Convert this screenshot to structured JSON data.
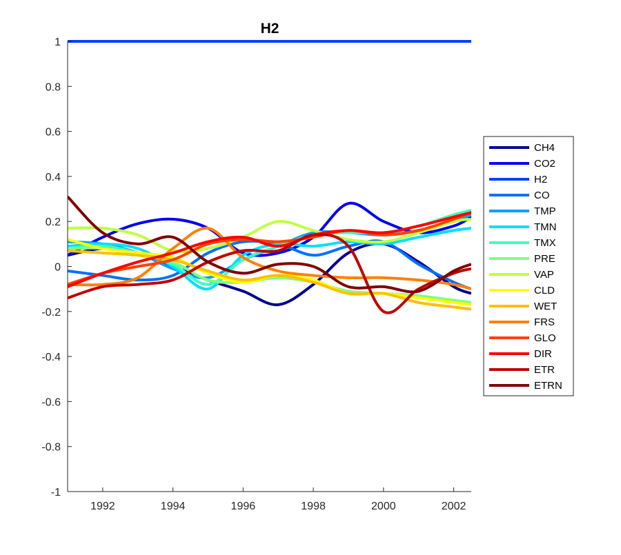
{
  "chart_data": {
    "type": "line",
    "title": "H2",
    "xlabel": "",
    "ylabel": "",
    "xlim": [
      1991,
      2002.5
    ],
    "ylim": [
      -1,
      1
    ],
    "xticks": [
      1992,
      1994,
      1996,
      1998,
      2000,
      2002
    ],
    "xtick_labels": [
      "1992",
      "1994",
      "1996",
      "1998",
      "2000",
      "2002"
    ],
    "yticks": [
      1,
      0.8,
      0.6,
      0.4,
      0.2,
      0,
      -0.2,
      -0.4,
      -0.6,
      -0.8,
      -1
    ],
    "ytick_labels": [
      "1",
      "0.8",
      "0.6",
      "0.4",
      "0.2",
      "0",
      "-0.2",
      "-0.4",
      "-0.6",
      "-0.8",
      "-1"
    ],
    "grid": false,
    "legend_position": "right-outside",
    "x": [
      1991,
      1992,
      1993,
      1994,
      1995,
      1996,
      1997,
      1998,
      1999,
      2000,
      2001,
      2002,
      2002.5
    ],
    "series": [
      {
        "name": "CH4",
        "color": "#00008F",
        "values": [
          0.05,
          0.08,
          0.06,
          0.0,
          -0.06,
          -0.11,
          -0.17,
          -0.08,
          0.06,
          0.1,
          0.02,
          -0.09,
          -0.12
        ]
      },
      {
        "name": "CO2",
        "color": "#0000EE",
        "values": [
          0.05,
          0.13,
          0.19,
          0.21,
          0.17,
          0.06,
          0.06,
          0.13,
          0.28,
          0.2,
          0.15,
          0.18,
          0.22
        ]
      },
      {
        "name": "H2",
        "color": "#0040FF",
        "values": [
          1,
          1,
          1,
          1,
          1,
          1,
          1,
          1,
          1,
          1,
          1,
          1,
          1
        ]
      },
      {
        "name": "CO",
        "color": "#0070FF",
        "values": [
          -0.02,
          -0.04,
          -0.06,
          -0.04,
          0.06,
          0.11,
          0.1,
          0.05,
          0.09,
          0.11,
          0.01,
          -0.07,
          -0.1
        ]
      },
      {
        "name": "TMP",
        "color": "#00A0FF",
        "values": [
          0.11,
          0.1,
          0.06,
          -0.01,
          -0.05,
          0.03,
          0.09,
          0.15,
          0.15,
          0.14,
          0.16,
          0.2,
          0.23
        ]
      },
      {
        "name": "TMN",
        "color": "#00DFFF",
        "values": [
          0.09,
          0.1,
          0.08,
          0.0,
          -0.1,
          0.05,
          0.1,
          0.09,
          0.11,
          0.1,
          0.13,
          0.16,
          0.17
        ]
      },
      {
        "name": "TMX",
        "color": "#40FFC0",
        "values": [
          0.08,
          0.09,
          0.06,
          0.01,
          -0.08,
          0.03,
          0.09,
          0.14,
          0.15,
          0.15,
          0.18,
          0.23,
          0.25
        ]
      },
      {
        "name": "PRE",
        "color": "#80FF80",
        "values": [
          0.08,
          0.08,
          0.05,
          0.02,
          -0.06,
          -0.07,
          -0.05,
          -0.07,
          -0.11,
          -0.12,
          -0.13,
          -0.15,
          -0.16
        ]
      },
      {
        "name": "VAP",
        "color": "#C0FF40",
        "values": [
          0.17,
          0.17,
          0.14,
          0.07,
          0.08,
          0.13,
          0.2,
          0.16,
          0.12,
          0.11,
          0.15,
          0.2,
          0.21
        ]
      },
      {
        "name": "CLD",
        "color": "#FFFF00",
        "values": [
          0.12,
          0.08,
          0.06,
          0.04,
          -0.03,
          -0.07,
          -0.04,
          -0.06,
          -0.12,
          -0.12,
          -0.14,
          -0.16,
          -0.17
        ]
      },
      {
        "name": "WET",
        "color": "#FFC000",
        "values": [
          0.07,
          0.06,
          0.05,
          0.03,
          -0.02,
          -0.06,
          -0.04,
          -0.07,
          -0.12,
          -0.12,
          -0.16,
          -0.18,
          -0.19
        ]
      },
      {
        "name": "FRS",
        "color": "#FF8000",
        "values": [
          -0.08,
          -0.08,
          -0.05,
          0.08,
          0.17,
          0.04,
          -0.02,
          -0.04,
          -0.05,
          -0.05,
          -0.06,
          -0.08,
          -0.1
        ]
      },
      {
        "name": "GLO",
        "color": "#FF4000",
        "values": [
          -0.08,
          -0.03,
          0.0,
          0.03,
          0.1,
          0.12,
          0.11,
          0.13,
          0.16,
          0.14,
          0.16,
          0.21,
          0.24
        ]
      },
      {
        "name": "DIR",
        "color": "#FF0000",
        "values": [
          -0.09,
          -0.03,
          0.02,
          0.06,
          0.11,
          0.13,
          0.09,
          0.14,
          0.16,
          0.15,
          0.18,
          0.22,
          0.24
        ]
      },
      {
        "name": "ETR",
        "color": "#BF0000",
        "values": [
          -0.14,
          -0.09,
          -0.08,
          -0.06,
          0.02,
          0.07,
          0.07,
          0.14,
          0.09,
          -0.2,
          -0.1,
          -0.03,
          -0.01
        ]
      },
      {
        "name": "ETRN",
        "color": "#800000",
        "values": [
          0.31,
          0.15,
          0.1,
          0.13,
          0.02,
          -0.03,
          0.01,
          0.0,
          -0.09,
          -0.09,
          -0.11,
          -0.02,
          0.01
        ]
      }
    ]
  }
}
